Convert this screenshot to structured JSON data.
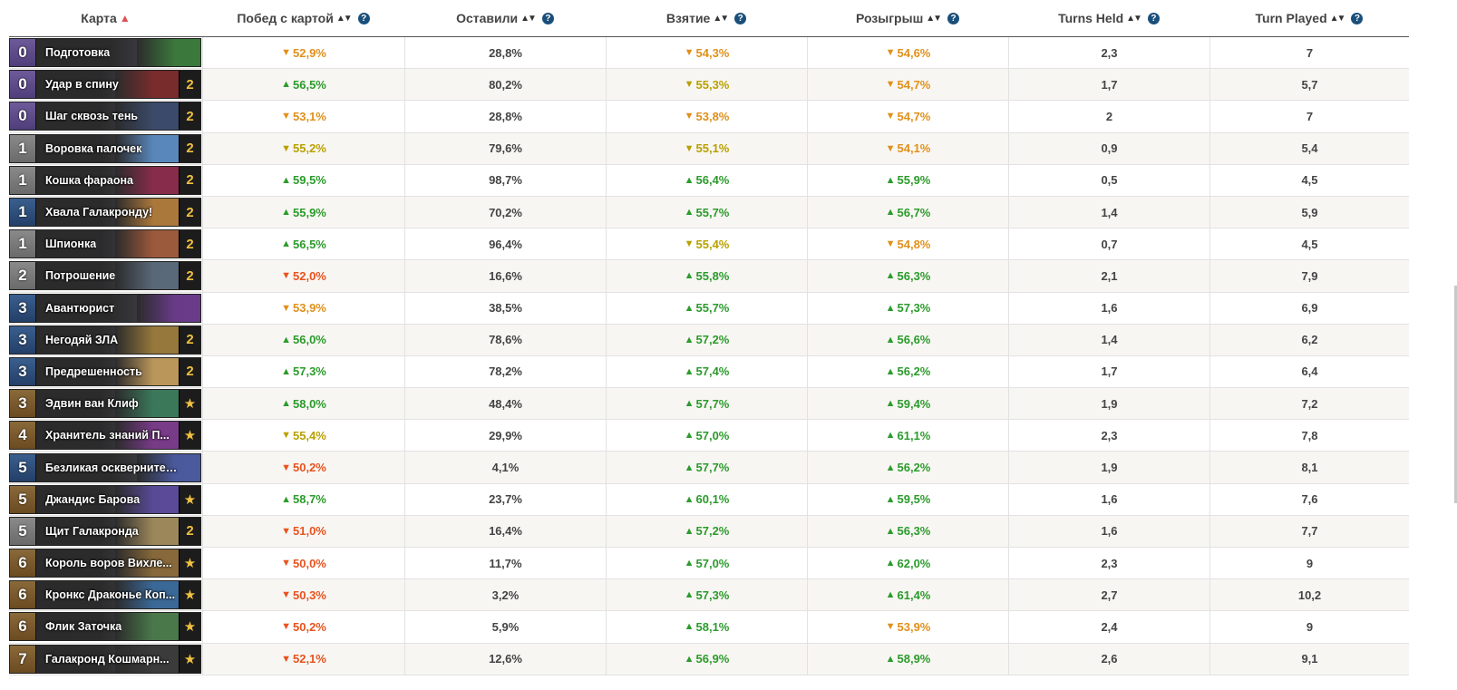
{
  "headers": [
    {
      "label": "Карта",
      "sort": "▲",
      "help": false,
      "active": true
    },
    {
      "label": "Побед с картой",
      "sort": "▲▼",
      "help": true
    },
    {
      "label": "Оставили",
      "sort": "▲▼",
      "help": true
    },
    {
      "label": "Взятие",
      "sort": "▲▼",
      "help": true
    },
    {
      "label": "Розыгрыш",
      "sort": "▲▼",
      "help": true
    },
    {
      "label": "Turns Held",
      "sort": "▲▼",
      "help": true
    },
    {
      "label": "Turn Played",
      "sort": "▲▼",
      "help": true
    }
  ],
  "help_glyph": "?",
  "colors": {
    "up": "#2b9b2b",
    "down_red": "#e8531e",
    "down_orange": "#e0901a",
    "down_yellow": "#b8a000",
    "legendary_star": "#f0c040"
  },
  "rows": [
    {
      "cost": "0",
      "name": "Подготовка",
      "count": "",
      "win": {
        "d": "down-o",
        "v": "52,9%"
      },
      "kept": "28,8%",
      "drawn": {
        "d": "down-o",
        "v": "54,3%"
      },
      "played": {
        "d": "down-o",
        "v": "54,6%"
      },
      "held": "2,3",
      "turn": "7",
      "tint": "#3a7a3a"
    },
    {
      "cost": "0",
      "name": "Удар в спину",
      "count": "2",
      "win": {
        "d": "up",
        "v": "56,5%"
      },
      "kept": "80,2%",
      "drawn": {
        "d": "down-y",
        "v": "55,3%"
      },
      "played": {
        "d": "down-o",
        "v": "54,7%"
      },
      "held": "1,7",
      "turn": "5,7",
      "tint": "#7a2a2a"
    },
    {
      "cost": "0",
      "name": "Шаг сквозь тень",
      "count": "2",
      "win": {
        "d": "down-o",
        "v": "53,1%"
      },
      "kept": "28,8%",
      "drawn": {
        "d": "down-o",
        "v": "53,8%"
      },
      "played": {
        "d": "down-o",
        "v": "54,7%"
      },
      "held": "2",
      "turn": "7",
      "tint": "#3a4a6a"
    },
    {
      "cost": "1",
      "name": "Воровка палочек",
      "count": "2",
      "win": {
        "d": "down-y",
        "v": "55,2%"
      },
      "kept": "79,6%",
      "drawn": {
        "d": "down-y",
        "v": "55,1%"
      },
      "played": {
        "d": "down-o",
        "v": "54,1%"
      },
      "held": "0,9",
      "turn": "5,4",
      "tint": "#5a8ac0"
    },
    {
      "cost": "1",
      "name": "Кошка фараона",
      "count": "2",
      "win": {
        "d": "up",
        "v": "59,5%"
      },
      "kept": "98,7%",
      "drawn": {
        "d": "up",
        "v": "56,4%"
      },
      "played": {
        "d": "up",
        "v": "55,9%"
      },
      "held": "0,5",
      "turn": "4,5",
      "tint": "#8a2a4a"
    },
    {
      "cost": "1",
      "name": "Хвала Галакронду!",
      "count": "2",
      "win": {
        "d": "up",
        "v": "55,9%"
      },
      "kept": "70,2%",
      "drawn": {
        "d": "up",
        "v": "55,7%"
      },
      "played": {
        "d": "up",
        "v": "56,7%"
      },
      "held": "1,4",
      "turn": "5,9",
      "tint": "#b07a3a"
    },
    {
      "cost": "1",
      "name": "Шпионка",
      "count": "2",
      "win": {
        "d": "up",
        "v": "56,5%"
      },
      "kept": "96,4%",
      "drawn": {
        "d": "down-y",
        "v": "55,4%"
      },
      "played": {
        "d": "down-o",
        "v": "54,8%"
      },
      "held": "0,7",
      "turn": "4,5",
      "tint": "#a05a3a"
    },
    {
      "cost": "2",
      "name": "Потрошение",
      "count": "2",
      "win": {
        "d": "down-r",
        "v": "52,0%"
      },
      "kept": "16,6%",
      "drawn": {
        "d": "up",
        "v": "55,8%"
      },
      "played": {
        "d": "up",
        "v": "56,3%"
      },
      "held": "2,1",
      "turn": "7,9",
      "tint": "#5a6a7a"
    },
    {
      "cost": "3",
      "name": "Авантюрист",
      "count": "",
      "win": {
        "d": "down-o",
        "v": "53,9%"
      },
      "kept": "38,5%",
      "drawn": {
        "d": "up",
        "v": "55,7%"
      },
      "played": {
        "d": "up",
        "v": "57,3%"
      },
      "held": "1,6",
      "turn": "6,9",
      "tint": "#6a3a8a"
    },
    {
      "cost": "3",
      "name": "Негодяй ЗЛА",
      "count": "2",
      "win": {
        "d": "up",
        "v": "56,0%"
      },
      "kept": "78,6%",
      "drawn": {
        "d": "up",
        "v": "57,2%"
      },
      "played": {
        "d": "up",
        "v": "56,6%"
      },
      "held": "1,4",
      "turn": "6,2",
      "tint": "#9a7a3a"
    },
    {
      "cost": "3",
      "name": "Предрешенность",
      "count": "2",
      "win": {
        "d": "up",
        "v": "57,3%"
      },
      "kept": "78,2%",
      "drawn": {
        "d": "up",
        "v": "57,4%"
      },
      "played": {
        "d": "up",
        "v": "56,2%"
      },
      "held": "1,7",
      "turn": "6,4",
      "tint": "#c09a5a"
    },
    {
      "cost": "3",
      "name": "Эдвин ван Клиф",
      "count": "★",
      "win": {
        "d": "up",
        "v": "58,0%"
      },
      "kept": "48,4%",
      "drawn": {
        "d": "up",
        "v": "57,7%"
      },
      "played": {
        "d": "up",
        "v": "59,4%"
      },
      "held": "1,9",
      "turn": "7,2",
      "tint": "#3a7a5a"
    },
    {
      "cost": "4",
      "name": "Хранитель знаний П...",
      "count": "★",
      "win": {
        "d": "down-y",
        "v": "55,4%"
      },
      "kept": "29,9%",
      "drawn": {
        "d": "up",
        "v": "57,0%"
      },
      "played": {
        "d": "up",
        "v": "61,1%"
      },
      "held": "2,3",
      "turn": "7,8",
      "tint": "#7a3a8a"
    },
    {
      "cost": "5",
      "name": "Безликая осквернитель...",
      "count": "",
      "win": {
        "d": "down-r",
        "v": "50,2%"
      },
      "kept": "4,1%",
      "drawn": {
        "d": "up",
        "v": "57,7%"
      },
      "played": {
        "d": "up",
        "v": "56,2%"
      },
      "held": "1,9",
      "turn": "8,1",
      "tint": "#4a5aa0"
    },
    {
      "cost": "5",
      "name": "Джандис Барова",
      "count": "★",
      "win": {
        "d": "up",
        "v": "58,7%"
      },
      "kept": "23,7%",
      "drawn": {
        "d": "up",
        "v": "60,1%"
      },
      "played": {
        "d": "up",
        "v": "59,5%"
      },
      "held": "1,6",
      "turn": "7,6",
      "tint": "#5a4a9a"
    },
    {
      "cost": "5",
      "name": "Щит Галакронда",
      "count": "2",
      "win": {
        "d": "down-r",
        "v": "51,0%"
      },
      "kept": "16,4%",
      "drawn": {
        "d": "up",
        "v": "57,2%"
      },
      "played": {
        "d": "up",
        "v": "56,3%"
      },
      "held": "1,6",
      "turn": "7,7",
      "tint": "#a08a5a"
    },
    {
      "cost": "6",
      "name": "Король воров Вихле...",
      "count": "★",
      "win": {
        "d": "down-r",
        "v": "50,0%"
      },
      "kept": "11,7%",
      "drawn": {
        "d": "up",
        "v": "57,0%"
      },
      "played": {
        "d": "up",
        "v": "62,0%"
      },
      "held": "2,3",
      "turn": "9",
      "tint": "#8a6a3a"
    },
    {
      "cost": "6",
      "name": "Кронкс Драконье Коп...",
      "count": "★",
      "win": {
        "d": "down-r",
        "v": "50,3%"
      },
      "kept": "3,2%",
      "drawn": {
        "d": "up",
        "v": "57,3%"
      },
      "played": {
        "d": "up",
        "v": "61,4%"
      },
      "held": "2,7",
      "turn": "10,2",
      "tint": "#3a6a9a"
    },
    {
      "cost": "6",
      "name": "Флик Заточка",
      "count": "★",
      "win": {
        "d": "down-r",
        "v": "50,2%"
      },
      "kept": "5,9%",
      "drawn": {
        "d": "up",
        "v": "58,1%"
      },
      "played": {
        "d": "down-o",
        "v": "53,9%"
      },
      "held": "2,4",
      "turn": "9",
      "tint": "#4a7a4a"
    },
    {
      "cost": "7",
      "name": "Галакронд Кошмарн...",
      "count": "★",
      "win": {
        "d": "down-r",
        "v": "52,1%"
      },
      "kept": "12,6%",
      "drawn": {
        "d": "up",
        "v": "56,9%"
      },
      "played": {
        "d": "up",
        "v": "58,9%"
      },
      "held": "2,6",
      "turn": "9,1",
      "tint": "#3a3a3a"
    }
  ]
}
